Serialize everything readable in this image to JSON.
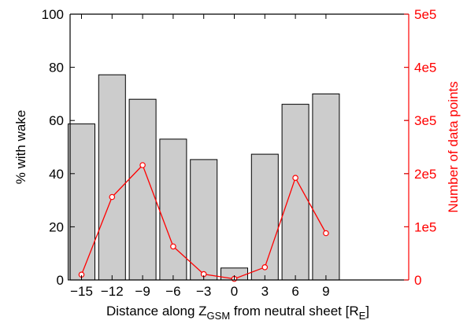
{
  "chart_data": {
    "type": "bar",
    "categories": [
      "−15",
      "−12",
      "−9",
      "−6",
      "−3",
      "0",
      "3",
      "6",
      "9"
    ],
    "series": [
      {
        "type": "bar",
        "axis": "left",
        "values": [
          58.7,
          77.2,
          68.0,
          53.0,
          45.3,
          4.5,
          47.3,
          66.1,
          70.0
        ]
      },
      {
        "type": "line",
        "axis": "right",
        "values": [
          10000,
          156000,
          216000,
          63000,
          11000,
          2000,
          24000,
          192000,
          88000
        ]
      }
    ],
    "xlabel": {
      "main": "Distance along Z",
      "sub1": "GSM",
      "mid": " from neutral sheet [R",
      "sub2": "E",
      "end": "]"
    },
    "ylabel_left": "% with wake",
    "ylabel_right": "Number of data points",
    "ylim_left": [
      0,
      100
    ],
    "ylim_right": [
      0,
      500000
    ],
    "yticks_left": [
      "0",
      "20",
      "40",
      "60",
      "80",
      "100"
    ],
    "yticks_right": [
      "0",
      "1e5",
      "2e5",
      "3e5",
      "4e5",
      "5e5"
    ],
    "grid": false,
    "colors": {
      "bar_fill": "#cccccc",
      "bar_stroke": "#000000",
      "line": "#ff0000",
      "right_axis": "#ff0000",
      "left_axis": "#000000"
    }
  }
}
